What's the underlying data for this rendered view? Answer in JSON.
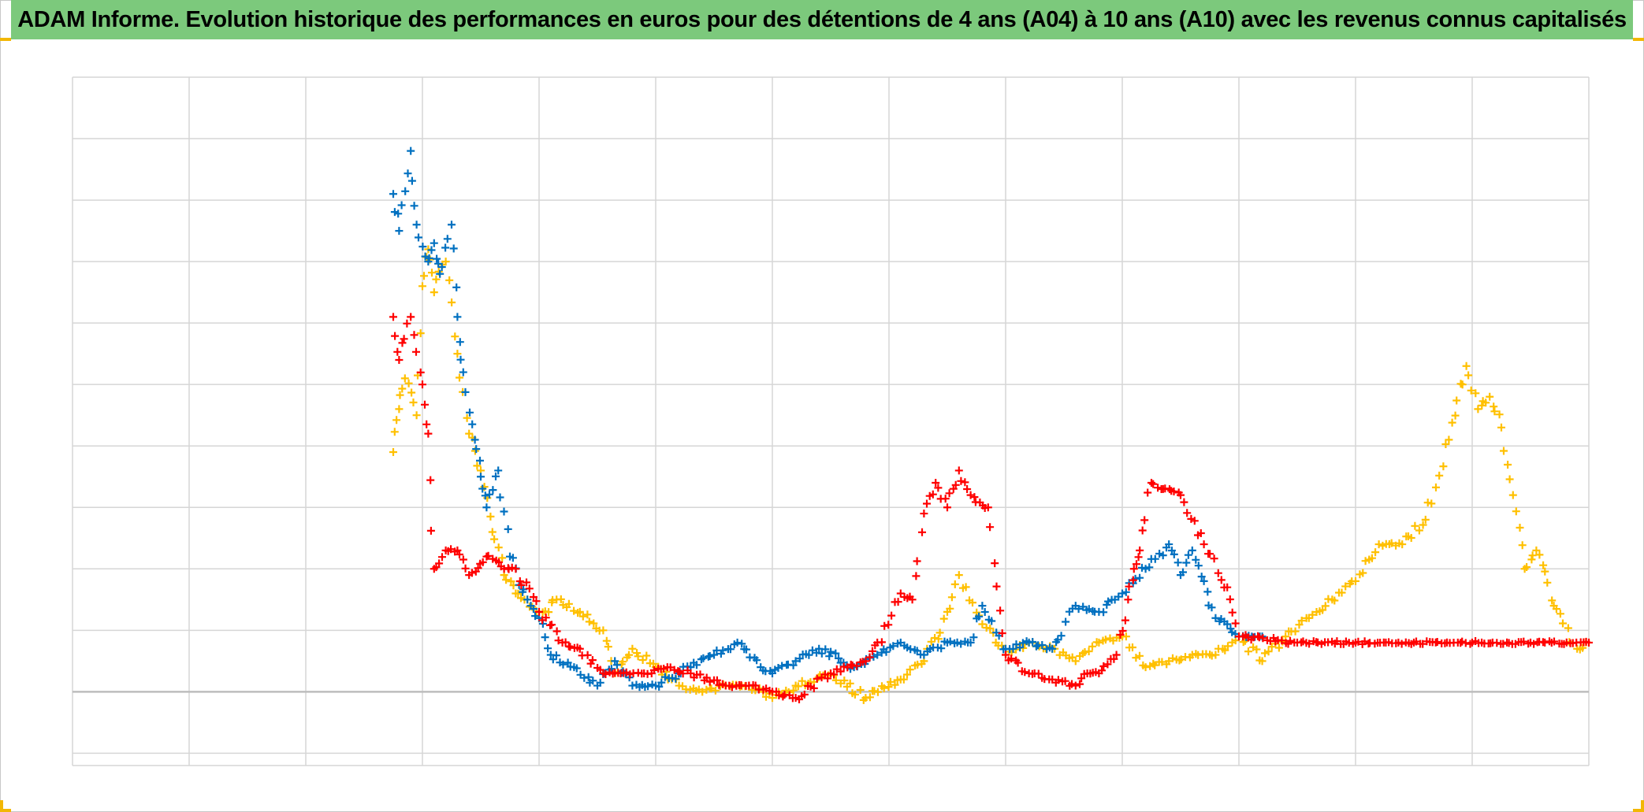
{
  "title": "ADAM Informe. Evolution historique des performances en euros pour des détentions de 4 ans (A04) à 10 ans (A10) avec les revenus connus capitalisés",
  "colors": {
    "title_background": "#7cc97c",
    "corner_accent": "#f2b705",
    "grid": "#d6d6d6",
    "baseline": "#bdbdbd"
  },
  "chart_data": {
    "type": "scatter",
    "marker": "plus",
    "title": "ADAM Informe. Evolution historique des performances en euros pour des détentions de 4 ans (A04) à 10 ans (A10) avec les revenus connus capitalisés",
    "xlabel": "",
    "ylabel": "",
    "tick_labels_shown": false,
    "grid": true,
    "legend": "none",
    "xlim": [
      0,
      13
    ],
    "ylim": [
      -1.2,
      10
    ],
    "x_gridlines": [
      0,
      1,
      2,
      3,
      4,
      5,
      6,
      7,
      8,
      9,
      10,
      11,
      12,
      13
    ],
    "y_gridlines": [
      -1,
      0,
      1,
      2,
      3,
      4,
      5,
      6,
      7,
      8,
      9,
      10
    ],
    "series": [
      {
        "color": "#ffc000",
        "x": [
          2.75,
          2.8,
          2.85,
          2.95,
          3.0,
          3.05,
          3.1,
          3.2,
          3.3,
          3.4,
          3.5,
          3.6,
          3.7,
          3.8,
          3.9,
          4.0,
          4.15,
          4.35,
          4.55,
          4.65,
          4.8,
          5.0,
          5.2,
          5.4,
          5.6,
          5.8,
          6.0,
          6.2,
          6.5,
          6.8,
          7.1,
          7.3,
          7.5,
          7.6,
          7.8,
          8.0,
          8.2,
          8.4,
          8.6,
          8.8,
          9.0,
          9.2,
          9.4,
          9.6,
          9.8,
          10.0,
          10.2,
          10.4,
          10.6,
          10.8,
          11.0,
          11.2,
          11.4,
          11.6,
          11.8,
          11.95,
          12.05,
          12.15,
          12.25,
          12.35,
          12.45,
          12.55,
          12.7,
          12.9,
          13.0
        ],
        "y": [
          3.9,
          4.6,
          5.1,
          4.5,
          6.6,
          7.2,
          6.5,
          7.0,
          5.5,
          4.2,
          3.6,
          2.6,
          1.9,
          1.6,
          1.5,
          1.2,
          1.5,
          1.3,
          1.0,
          0.3,
          0.7,
          0.4,
          0.1,
          0.0,
          0.1,
          0.1,
          -0.1,
          0.1,
          0.3,
          -0.1,
          0.2,
          0.5,
          1.3,
          1.9,
          1.1,
          0.6,
          0.8,
          0.7,
          0.5,
          0.8,
          0.9,
          0.4,
          0.5,
          0.6,
          0.6,
          0.9,
          0.5,
          0.9,
          1.2,
          1.5,
          1.8,
          2.4,
          2.4,
          2.8,
          4.1,
          5.3,
          4.6,
          4.8,
          4.3,
          3.2,
          2.0,
          2.3,
          1.4,
          0.7,
          0.8
        ]
      },
      {
        "color": "#0070c0",
        "x": [
          2.75,
          2.8,
          2.9,
          2.95,
          3.05,
          3.1,
          3.15,
          3.25,
          3.3,
          3.35,
          3.45,
          3.5,
          3.55,
          3.65,
          3.75,
          3.9,
          4.0,
          4.1,
          4.3,
          4.5,
          4.65,
          4.8,
          5.0,
          5.3,
          5.5,
          5.7,
          5.9,
          6.0,
          6.2,
          6.4,
          6.7,
          6.9,
          7.1,
          7.3,
          7.5,
          7.7,
          7.8,
          8.0,
          8.2,
          8.4,
          8.6,
          8.8,
          9.0,
          9.2,
          9.4,
          9.5,
          9.6,
          9.7,
          9.8,
          9.9,
          10.0,
          10.2
        ],
        "y": [
          8.1,
          7.5,
          8.8,
          7.6,
          7.0,
          7.3,
          6.8,
          7.6,
          6.1,
          5.2,
          4.1,
          3.5,
          3.0,
          3.6,
          2.2,
          1.5,
          1.2,
          0.6,
          0.4,
          0.1,
          0.5,
          0.1,
          0.1,
          0.4,
          0.6,
          0.8,
          0.4,
          0.3,
          0.5,
          0.7,
          0.4,
          0.6,
          0.8,
          0.6,
          0.8,
          0.8,
          1.4,
          0.7,
          0.8,
          0.7,
          1.4,
          1.3,
          1.6,
          2.0,
          2.4,
          1.9,
          2.3,
          1.8,
          1.2,
          1.1,
          0.9,
          0.9
        ]
      },
      {
        "color": "#ff0000",
        "x": [
          2.75,
          2.8,
          2.9,
          3.0,
          3.05,
          3.1,
          3.2,
          3.3,
          3.4,
          3.55,
          3.7,
          3.8,
          4.0,
          4.2,
          4.35,
          4.55,
          4.7,
          4.9,
          5.1,
          5.3,
          5.6,
          5.8,
          6.0,
          6.2,
          6.5,
          6.8,
          6.9,
          7.1,
          7.2,
          7.3,
          7.4,
          7.5,
          7.6,
          7.7,
          7.85,
          8.0,
          8.2,
          8.4,
          8.6,
          8.7,
          8.8,
          8.95,
          9.05,
          9.1,
          9.15,
          9.25,
          9.35,
          9.5,
          9.7,
          9.9,
          10.0,
          10.5,
          11.0,
          11.5,
          12.0,
          12.5,
          13.0
        ],
        "y": [
          6.1,
          5.4,
          6.1,
          5.0,
          4.2,
          2.0,
          2.3,
          2.3,
          1.9,
          2.2,
          2.0,
          2.0,
          1.3,
          0.8,
          0.7,
          0.3,
          0.3,
          0.3,
          0.4,
          0.3,
          0.1,
          0.1,
          0.0,
          -0.1,
          0.3,
          0.5,
          0.8,
          1.6,
          1.5,
          2.9,
          3.4,
          3.0,
          3.6,
          3.2,
          3.0,
          0.6,
          0.3,
          0.2,
          0.1,
          0.3,
          0.3,
          0.6,
          1.5,
          2.0,
          2.3,
          3.4,
          3.3,
          3.2,
          2.4,
          1.7,
          0.9,
          0.8,
          0.8,
          0.8,
          0.8,
          0.8,
          0.8
        ]
      }
    ]
  }
}
